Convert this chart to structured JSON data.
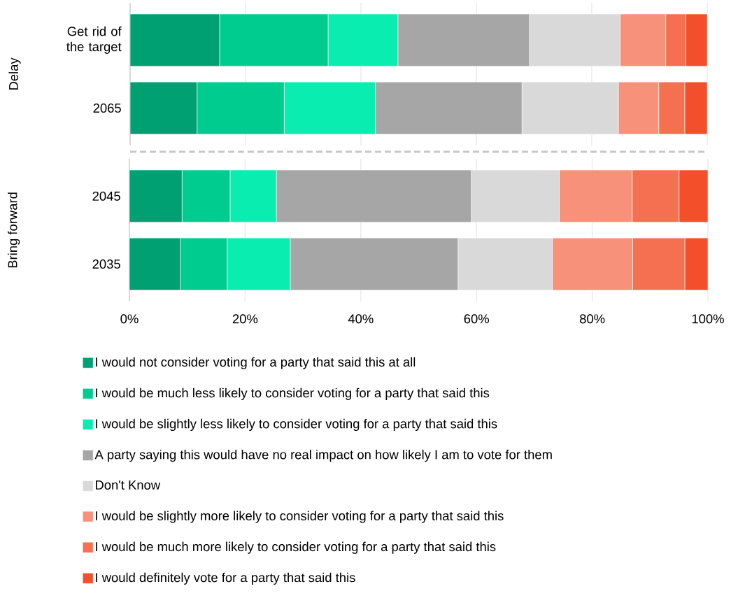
{
  "chart_data": [
    {
      "type": "bar",
      "orientation": "horizontal",
      "stacked": true,
      "ylabel": "Delay",
      "categories": [
        "Get rid of the target",
        "2065"
      ],
      "xlim": [
        0,
        100
      ],
      "xticks": [
        0,
        20,
        40,
        60,
        80,
        100
      ],
      "tick_labels": "y",
      "grid": "x",
      "series": [
        {
          "color": "#00a073",
          "values": [
            15.5,
            11.6
          ]
        },
        {
          "color": "#00cc90",
          "values": [
            18.8,
            15.1
          ]
        },
        {
          "color": "#0aedb0",
          "values": [
            12.1,
            15.8
          ]
        },
        {
          "color": "#a6a6a6",
          "values": [
            22.8,
            25.4
          ]
        },
        {
          "color": "#d9d9d9",
          "values": [
            15.7,
            16.7
          ]
        },
        {
          "color": "#f7917a",
          "values": [
            7.9,
            7.0
          ]
        },
        {
          "color": "#f47050",
          "values": [
            3.5,
            4.5
          ]
        },
        {
          "color": "#f24f2a",
          "values": [
            3.7,
            3.9
          ]
        }
      ]
    },
    {
      "type": "bar",
      "orientation": "horizontal",
      "stacked": true,
      "ylabel": "Bring forward",
      "categories": [
        "2045",
        "2035"
      ],
      "xlim": [
        0,
        100
      ],
      "xticks": [
        {
          "value": 0,
          "label": "0%"
        },
        {
          "value": 20,
          "label": "20%"
        },
        {
          "value": 40,
          "label": "40%"
        },
        {
          "value": 60,
          "label": "60%"
        },
        {
          "value": 80,
          "label": "80%"
        },
        {
          "value": 100,
          "label": "100%"
        }
      ],
      "grid": "x",
      "legend": "bottom",
      "series": [
        {
          "name": "I would not consider voting for a party that said this at all",
          "color": "#00a073",
          "values": [
            9.1,
            8.8
          ]
        },
        {
          "name": "I would be much less likely to consider voting for a party that said this",
          "color": "#00cc90",
          "values": [
            8.3,
            8.1
          ]
        },
        {
          "name": "I would be slightly less likely to consider voting for a party that said this",
          "color": "#0aedb0",
          "values": [
            8.0,
            10.9
          ]
        },
        {
          "name": "A party saying this would have no real impact on how likely I am to vote for them",
          "color": "#a6a6a6",
          "values": [
            33.7,
            29.0
          ]
        },
        {
          "name": "Don't Know",
          "color": "#d9d9d9",
          "values": [
            15.2,
            16.3
          ]
        },
        {
          "name": "I would be slightly more likely to consider voting for a party that said this",
          "color": "#f7917a",
          "values": [
            12.6,
            13.9
          ]
        },
        {
          "name": "I would be much more likely to consider voting for a party that said this",
          "color": "#f47050",
          "values": [
            8.1,
            9.0
          ]
        },
        {
          "name": "I would definitely vote for a party that said this",
          "color": "#f24f2a",
          "values": [
            5.0,
            4.0
          ]
        }
      ]
    }
  ]
}
